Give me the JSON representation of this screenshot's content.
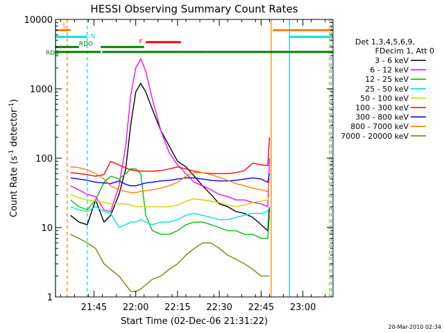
{
  "chart_data": {
    "type": "line",
    "title": "HESSI Observing Summary Count Rates",
    "xlabel": "Start Time (02-Dec-06 21:31:22)",
    "ylabel_main": "Count Rate (s",
    "ylabel_sup1": "-1",
    "ylabel_mid": " detector",
    "ylabel_sup2": "-1",
    "ylabel_end": ")",
    "yscale": "log",
    "ylim": [
      1,
      10000
    ],
    "xlim_minutes": [
      21.52,
      23.18
    ],
    "y_ticks": [
      {
        "value": 1,
        "label": "1"
      },
      {
        "value": 10,
        "label": "10"
      },
      {
        "value": 100,
        "label": "100"
      },
      {
        "value": 1000,
        "label": "1000"
      },
      {
        "value": 10000,
        "label": "10000"
      }
    ],
    "x_ticks": [
      {
        "value": 21.75,
        "label": "21:45"
      },
      {
        "value": 22.0,
        "label": "22:00"
      },
      {
        "value": 22.25,
        "label": "22:15"
      },
      {
        "value": 22.5,
        "label": "22:30"
      },
      {
        "value": 22.75,
        "label": "22:45"
      },
      {
        "value": 23.0,
        "label": "23:00"
      }
    ],
    "legend_header": [
      "Det 1,3,4,5,6,9,",
      "FDecim 1, Att 0"
    ],
    "legend_position": "right",
    "timestamp": "20-Mar-2010 02:34",
    "state_bars": [
      {
        "label": "S",
        "color": "#ff8000",
        "segments": [
          [
            21.52,
            21.61
          ],
          [
            22.82,
            23.18
          ]
        ],
        "level": 7000
      },
      {
        "label": "N",
        "color": "#00e0e0",
        "segments": [
          [
            21.52,
            21.71
          ],
          [
            22.92,
            23.18
          ]
        ],
        "level": 5600
      },
      {
        "label": "F",
        "color": "#ff0000",
        "segments": [
          [
            22.06,
            22.27
          ]
        ],
        "level": 4700
      },
      {
        "label": "RDO",
        "color": "#008000",
        "segments": [
          [
            21.52,
            21.66
          ],
          [
            21.79,
            22.05
          ]
        ],
        "level": 4000
      },
      {
        "label": "RD4",
        "color": "#008000",
        "segments": [
          [
            21.52,
            21.79
          ],
          [
            21.8,
            22.27
          ],
          [
            22.27,
            22.43
          ],
          [
            22.43,
            23.18
          ]
        ],
        "level": 3400
      }
    ],
    "vlines": [
      {
        "x": 21.52,
        "color": "#00e0e0",
        "dash": false
      },
      {
        "x": 21.59,
        "color": "#ff8000",
        "dash": true
      },
      {
        "x": 21.71,
        "color": "#00e0e0",
        "dash": true
      },
      {
        "x": 22.81,
        "color": "#ff8000",
        "dash": false
      },
      {
        "x": 22.92,
        "color": "#00e0e0",
        "dash": false
      },
      {
        "x": 23.16,
        "color": "#ff8000",
        "dash": true
      },
      {
        "x": 23.17,
        "color": "#00e0e0",
        "dash": true
      }
    ],
    "series": [
      {
        "name": "3 - 6 keV",
        "color": "#000000",
        "points": [
          [
            21.61,
            15
          ],
          [
            21.66,
            12
          ],
          [
            21.71,
            11
          ],
          [
            21.76,
            25
          ],
          [
            21.81,
            12
          ],
          [
            21.85,
            15
          ],
          [
            21.9,
            30
          ],
          [
            21.94,
            70
          ],
          [
            21.97,
            300
          ],
          [
            22.0,
            900
          ],
          [
            22.03,
            1200
          ],
          [
            22.06,
            900
          ],
          [
            22.1,
            500
          ],
          [
            22.15,
            250
          ],
          [
            22.2,
            150
          ],
          [
            22.25,
            90
          ],
          [
            22.3,
            75
          ],
          [
            22.35,
            55
          ],
          [
            22.4,
            40
          ],
          [
            22.45,
            30
          ],
          [
            22.5,
            22
          ],
          [
            22.55,
            20
          ],
          [
            22.6,
            17
          ],
          [
            22.65,
            16
          ],
          [
            22.7,
            14
          ],
          [
            22.75,
            11
          ],
          [
            22.79,
            9
          ],
          [
            22.8,
            20
          ]
        ]
      },
      {
        "name": "6 - 12 keV",
        "color": "#ff00ff",
        "points": [
          [
            21.61,
            40
          ],
          [
            21.66,
            35
          ],
          [
            21.71,
            30
          ],
          [
            21.76,
            28
          ],
          [
            21.81,
            18
          ],
          [
            21.85,
            17
          ],
          [
            21.9,
            40
          ],
          [
            21.94,
            150
          ],
          [
            21.97,
            800
          ],
          [
            22.0,
            2000
          ],
          [
            22.03,
            2700
          ],
          [
            22.06,
            1800
          ],
          [
            22.1,
            700
          ],
          [
            22.15,
            250
          ],
          [
            22.2,
            120
          ],
          [
            22.25,
            80
          ],
          [
            22.3,
            60
          ],
          [
            22.35,
            45
          ],
          [
            22.4,
            40
          ],
          [
            22.45,
            35
          ],
          [
            22.5,
            30
          ],
          [
            22.55,
            28
          ],
          [
            22.6,
            25
          ],
          [
            22.65,
            25
          ],
          [
            22.7,
            23
          ],
          [
            22.75,
            22
          ],
          [
            22.79,
            20
          ],
          [
            22.8,
            100
          ]
        ]
      },
      {
        "name": "12 - 25 keV",
        "color": "#00c000",
        "points": [
          [
            21.61,
            25
          ],
          [
            21.66,
            20
          ],
          [
            21.71,
            18
          ],
          [
            21.76,
            25
          ],
          [
            21.81,
            45
          ],
          [
            21.85,
            55
          ],
          [
            21.9,
            50
          ],
          [
            21.94,
            60
          ],
          [
            21.97,
            70
          ],
          [
            22.0,
            70
          ],
          [
            22.03,
            60
          ],
          [
            22.06,
            15
          ],
          [
            22.1,
            9
          ],
          [
            22.15,
            8
          ],
          [
            22.2,
            8
          ],
          [
            22.25,
            9
          ],
          [
            22.3,
            11
          ],
          [
            22.35,
            12
          ],
          [
            22.4,
            12
          ],
          [
            22.45,
            11
          ],
          [
            22.5,
            10
          ],
          [
            22.55,
            9
          ],
          [
            22.6,
            9
          ],
          [
            22.65,
            8
          ],
          [
            22.7,
            8
          ],
          [
            22.75,
            7
          ],
          [
            22.79,
            7
          ],
          [
            22.8,
            15
          ]
        ]
      },
      {
        "name": "25 - 50 keV",
        "color": "#00e0e0",
        "points": [
          [
            21.61,
            20
          ],
          [
            21.66,
            18
          ],
          [
            21.71,
            17
          ],
          [
            21.76,
            20
          ],
          [
            21.81,
            17
          ],
          [
            21.85,
            16
          ],
          [
            21.9,
            10
          ],
          [
            21.94,
            11
          ],
          [
            21.97,
            12
          ],
          [
            22.0,
            12
          ],
          [
            22.03,
            13
          ],
          [
            22.06,
            12
          ],
          [
            22.1,
            11
          ],
          [
            22.15,
            12
          ],
          [
            22.2,
            12
          ],
          [
            22.25,
            13
          ],
          [
            22.3,
            15
          ],
          [
            22.35,
            16
          ],
          [
            22.4,
            15
          ],
          [
            22.45,
            14
          ],
          [
            22.5,
            13
          ],
          [
            22.55,
            13
          ],
          [
            22.6,
            14
          ],
          [
            22.65,
            15
          ],
          [
            22.7,
            16
          ],
          [
            22.75,
            16
          ],
          [
            22.79,
            17
          ],
          [
            22.8,
            20
          ]
        ]
      },
      {
        "name": "50 - 100 keV",
        "color": "#d0d000",
        "points": [
          [
            21.61,
            30
          ],
          [
            21.66,
            27
          ],
          [
            21.71,
            25
          ],
          [
            21.76,
            24
          ],
          [
            21.81,
            23
          ],
          [
            21.85,
            22
          ],
          [
            21.9,
            22
          ],
          [
            21.94,
            22
          ],
          [
            21.97,
            21
          ],
          [
            22.0,
            20
          ],
          [
            22.03,
            20
          ],
          [
            22.06,
            20
          ],
          [
            22.1,
            20
          ],
          [
            22.15,
            20
          ],
          [
            22.2,
            20
          ],
          [
            22.25,
            21
          ],
          [
            22.3,
            24
          ],
          [
            22.35,
            26
          ],
          [
            22.4,
            25
          ],
          [
            22.45,
            24
          ],
          [
            22.5,
            23
          ],
          [
            22.55,
            21
          ],
          [
            22.6,
            20
          ],
          [
            22.65,
            21
          ],
          [
            22.7,
            23
          ],
          [
            22.75,
            24
          ],
          [
            22.79,
            25
          ],
          [
            22.8,
            30
          ]
        ]
      },
      {
        "name": "100 - 300 keV",
        "color": "#ff0000",
        "points": [
          [
            21.61,
            62
          ],
          [
            21.66,
            60
          ],
          [
            21.71,
            58
          ],
          [
            21.76,
            55
          ],
          [
            21.81,
            58
          ],
          [
            21.85,
            90
          ],
          [
            21.9,
            80
          ],
          [
            21.94,
            72
          ],
          [
            21.97,
            68
          ],
          [
            22.0,
            66
          ],
          [
            22.03,
            65
          ],
          [
            22.06,
            65
          ],
          [
            22.1,
            65
          ],
          [
            22.15,
            66
          ],
          [
            22.2,
            70
          ],
          [
            22.25,
            75
          ],
          [
            22.3,
            70
          ],
          [
            22.35,
            65
          ],
          [
            22.4,
            62
          ],
          [
            22.45,
            60
          ],
          [
            22.5,
            60
          ],
          [
            22.55,
            60
          ],
          [
            22.6,
            62
          ],
          [
            22.65,
            66
          ],
          [
            22.7,
            85
          ],
          [
            22.75,
            80
          ],
          [
            22.79,
            78
          ],
          [
            22.8,
            200
          ]
        ]
      },
      {
        "name": "300 - 800 keV",
        "color": "#0000ff",
        "points": [
          [
            21.61,
            52
          ],
          [
            21.66,
            50
          ],
          [
            21.71,
            48
          ],
          [
            21.76,
            45
          ],
          [
            21.81,
            44
          ],
          [
            21.85,
            43
          ],
          [
            21.9,
            47
          ],
          [
            21.94,
            42
          ],
          [
            21.97,
            40
          ],
          [
            22.0,
            40
          ],
          [
            22.03,
            42
          ],
          [
            22.06,
            44
          ],
          [
            22.1,
            45
          ],
          [
            22.15,
            47
          ],
          [
            22.2,
            48
          ],
          [
            22.25,
            50
          ],
          [
            22.3,
            52
          ],
          [
            22.35,
            52
          ],
          [
            22.4,
            50
          ],
          [
            22.45,
            48
          ],
          [
            22.5,
            47
          ],
          [
            22.55,
            47
          ],
          [
            22.6,
            48
          ],
          [
            22.65,
            50
          ],
          [
            22.7,
            52
          ],
          [
            22.75,
            50
          ],
          [
            22.79,
            45
          ],
          [
            22.8,
            60
          ]
        ]
      },
      {
        "name": "800 - 7000 keV",
        "color": "#ff8000",
        "points": [
          [
            21.61,
            75
          ],
          [
            21.66,
            73
          ],
          [
            21.71,
            68
          ],
          [
            21.76,
            60
          ],
          [
            21.81,
            50
          ],
          [
            21.85,
            40
          ],
          [
            21.9,
            35
          ],
          [
            21.94,
            33
          ],
          [
            21.97,
            32
          ],
          [
            22.0,
            32
          ],
          [
            22.03,
            33
          ],
          [
            22.06,
            34
          ],
          [
            22.1,
            35
          ],
          [
            22.15,
            37
          ],
          [
            22.2,
            40
          ],
          [
            22.25,
            45
          ],
          [
            22.3,
            55
          ],
          [
            22.35,
            62
          ],
          [
            22.4,
            62
          ],
          [
            22.45,
            58
          ],
          [
            22.5,
            53
          ],
          [
            22.55,
            48
          ],
          [
            22.6,
            43
          ],
          [
            22.65,
            40
          ],
          [
            22.7,
            37
          ],
          [
            22.75,
            35
          ],
          [
            22.79,
            33
          ],
          [
            22.8,
            50
          ]
        ]
      },
      {
        "name": "7000 - 20000 keV",
        "color": "#808000",
        "points": [
          [
            21.61,
            8
          ],
          [
            21.66,
            7
          ],
          [
            21.71,
            6
          ],
          [
            21.76,
            5
          ],
          [
            21.81,
            3
          ],
          [
            21.85,
            2.5
          ],
          [
            21.9,
            2
          ],
          [
            21.94,
            1.5
          ],
          [
            21.97,
            1.2
          ],
          [
            22.0,
            1.2
          ],
          [
            22.03,
            1.3
          ],
          [
            22.06,
            1.5
          ],
          [
            22.1,
            1.8
          ],
          [
            22.15,
            2
          ],
          [
            22.2,
            2.5
          ],
          [
            22.25,
            3
          ],
          [
            22.3,
            4
          ],
          [
            22.35,
            5
          ],
          [
            22.4,
            6
          ],
          [
            22.45,
            6
          ],
          [
            22.5,
            5
          ],
          [
            22.55,
            4
          ],
          [
            22.6,
            3.5
          ],
          [
            22.65,
            3
          ],
          [
            22.7,
            2.5
          ],
          [
            22.75,
            2
          ],
          [
            22.79,
            2
          ],
          [
            22.8,
            2
          ]
        ]
      }
    ]
  }
}
